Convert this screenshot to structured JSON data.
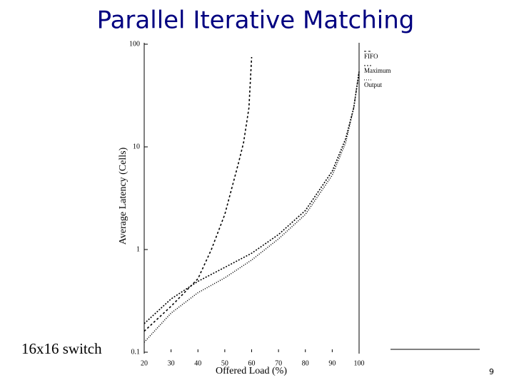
{
  "title": "Parallel Iterative Matching",
  "caption": "16x16 switch",
  "page_number": "9",
  "chart_data": {
    "type": "line",
    "x_label": "Offered Load (%)",
    "y_label": "Average Latency (Cells)",
    "log_y": true,
    "xlim": [
      20,
      100
    ],
    "ylim": [
      0.1,
      100
    ],
    "xticks": [
      20,
      30,
      40,
      50,
      60,
      70,
      80,
      90,
      100
    ],
    "yticks": [
      0.1,
      1,
      10,
      100
    ],
    "series": [
      {
        "name": "FIFO",
        "color": "#000000",
        "x": [
          20,
          30,
          40,
          45,
          50,
          55,
          57,
          59,
          60
        ],
        "values": [
          0.16,
          0.28,
          0.52,
          1.0,
          2.2,
          6.8,
          11,
          24,
          75
        ]
      },
      {
        "name": "Maximum",
        "color": "#000000",
        "x": [
          20,
          30,
          40,
          50,
          60,
          70,
          80,
          90,
          95,
          98,
          100
        ],
        "values": [
          0.19,
          0.33,
          0.49,
          0.67,
          0.92,
          1.4,
          2.4,
          5.8,
          12,
          24,
          54
        ]
      },
      {
        "name": "Output",
        "color": "#000000",
        "x": [
          20,
          30,
          40,
          50,
          60,
          70,
          80,
          90,
          95,
          98,
          100
        ],
        "values": [
          0.125,
          0.24,
          0.38,
          0.53,
          0.79,
          1.27,
          2.2,
          5.3,
          11,
          24,
          54
        ]
      }
    ]
  }
}
